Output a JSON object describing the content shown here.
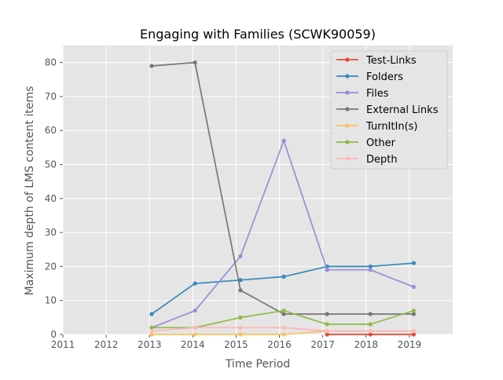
{
  "chart_data": {
    "type": "line",
    "title": "Engaging with Families (SCWK90059)",
    "xlabel": "Time Period",
    "ylabel": "Maximum depth of LMS content items",
    "xlim": [
      2011,
      2020
    ],
    "ylim": [
      0,
      85
    ],
    "xticks": [
      2011,
      2012,
      2013,
      2014,
      2015,
      2016,
      2017,
      2018,
      2019
    ],
    "yticks": [
      0,
      10,
      20,
      30,
      40,
      50,
      60,
      70,
      80
    ],
    "grid": true,
    "legend_position": "top-right",
    "x": [
      2013.05,
      2014.05,
      2015.1,
      2016.1,
      2017.1,
      2018.1,
      2019.1
    ],
    "series": [
      {
        "name": "Test-Links",
        "color": "#e24a33",
        "values": [
          null,
          null,
          null,
          null,
          0,
          0,
          0
        ]
      },
      {
        "name": "Folders",
        "color": "#348abd",
        "values": [
          6,
          15,
          16,
          17,
          20,
          20,
          21
        ]
      },
      {
        "name": "Files",
        "color": "#988ed5",
        "values": [
          2,
          7,
          23,
          57,
          19,
          19,
          14
        ]
      },
      {
        "name": "External Links",
        "color": "#777777",
        "values": [
          79,
          80,
          13,
          6,
          6,
          6,
          6
        ]
      },
      {
        "name": "TurnItIn(s)",
        "color": "#fbc15e",
        "values": [
          0,
          0,
          0,
          0,
          1,
          1,
          1
        ]
      },
      {
        "name": "Other",
        "color": "#8eba42",
        "values": [
          2,
          2,
          5,
          7,
          3,
          3,
          7
        ]
      },
      {
        "name": "Depth",
        "color": "#ffb5b8",
        "values": [
          1,
          2,
          2,
          2,
          1,
          1,
          1
        ]
      }
    ]
  }
}
